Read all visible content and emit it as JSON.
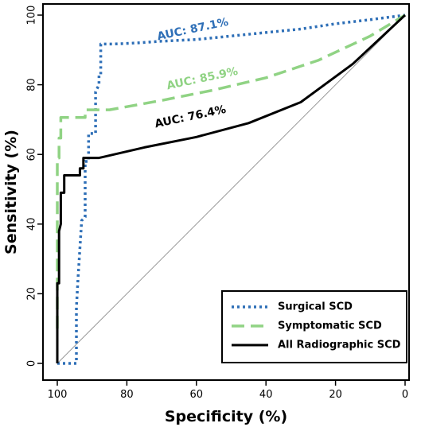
{
  "chart_data": {
    "type": "line",
    "title": "",
    "xlabel": "Specificity (%)",
    "ylabel": "Sensitivity (%)",
    "xlim": [
      100,
      0
    ],
    "ylim": [
      0,
      100
    ],
    "x_ticks": [
      "100",
      "80",
      "60",
      "40",
      "20",
      "0"
    ],
    "y_ticks": [
      "0",
      "20",
      "40",
      "60",
      "80",
      "100"
    ],
    "grid": false,
    "reference_line": {
      "from": [
        100,
        0
      ],
      "to": [
        0,
        100
      ],
      "color": "#999999"
    },
    "legend_position": "bottom-right",
    "series": [
      {
        "name": "Surgical SCD",
        "color": "#2e6fb7",
        "style": "dotted",
        "auc_label": "AUC: 87.1%",
        "points": [
          [
            100,
            0
          ],
          [
            94.5,
            0
          ],
          [
            94.5,
            16
          ],
          [
            94,
            25
          ],
          [
            93,
            41
          ],
          [
            92,
            42
          ],
          [
            92,
            58
          ],
          [
            91,
            58
          ],
          [
            91,
            66
          ],
          [
            89,
            66
          ],
          [
            89,
            78
          ],
          [
            88,
            80
          ],
          [
            88,
            83
          ],
          [
            87.5,
            83
          ],
          [
            87.5,
            91.7
          ],
          [
            84,
            91.7
          ],
          [
            77,
            92
          ],
          [
            70,
            92.5
          ],
          [
            60,
            93
          ],
          [
            50,
            94
          ],
          [
            40,
            95
          ],
          [
            30,
            96
          ],
          [
            20,
            97.5
          ],
          [
            10,
            98.7
          ],
          [
            0,
            100
          ]
        ]
      },
      {
        "name": "Symptomatic SCD",
        "color": "#90d384",
        "style": "dashed",
        "auc_label": "AUC: 85.9%",
        "points": [
          [
            100,
            10
          ],
          [
            100,
            59
          ],
          [
            99.5,
            59
          ],
          [
            99.5,
            64.7
          ],
          [
            99,
            64.7
          ],
          [
            99,
            70.6
          ],
          [
            92,
            70.6
          ],
          [
            92,
            72.8
          ],
          [
            85,
            72.8
          ],
          [
            70,
            75.5
          ],
          [
            55,
            78.5
          ],
          [
            40,
            82
          ],
          [
            25,
            87
          ],
          [
            10,
            94
          ],
          [
            0,
            100
          ]
        ]
      },
      {
        "name": "All Radiographic SCD",
        "color": "#000000",
        "style": "solid",
        "auc_label": "AUC: 76.4%",
        "points": [
          [
            100,
            0
          ],
          [
            100,
            23
          ],
          [
            99.5,
            23
          ],
          [
            99.5,
            38
          ],
          [
            99,
            40
          ],
          [
            99,
            49
          ],
          [
            98,
            49
          ],
          [
            98,
            54
          ],
          [
            93.5,
            54
          ],
          [
            93.5,
            56
          ],
          [
            92.5,
            56
          ],
          [
            92.5,
            59
          ],
          [
            88,
            59
          ],
          [
            75,
            62
          ],
          [
            60,
            65
          ],
          [
            45,
            69
          ],
          [
            30,
            75
          ],
          [
            15,
            86
          ],
          [
            0,
            100
          ]
        ]
      }
    ]
  }
}
